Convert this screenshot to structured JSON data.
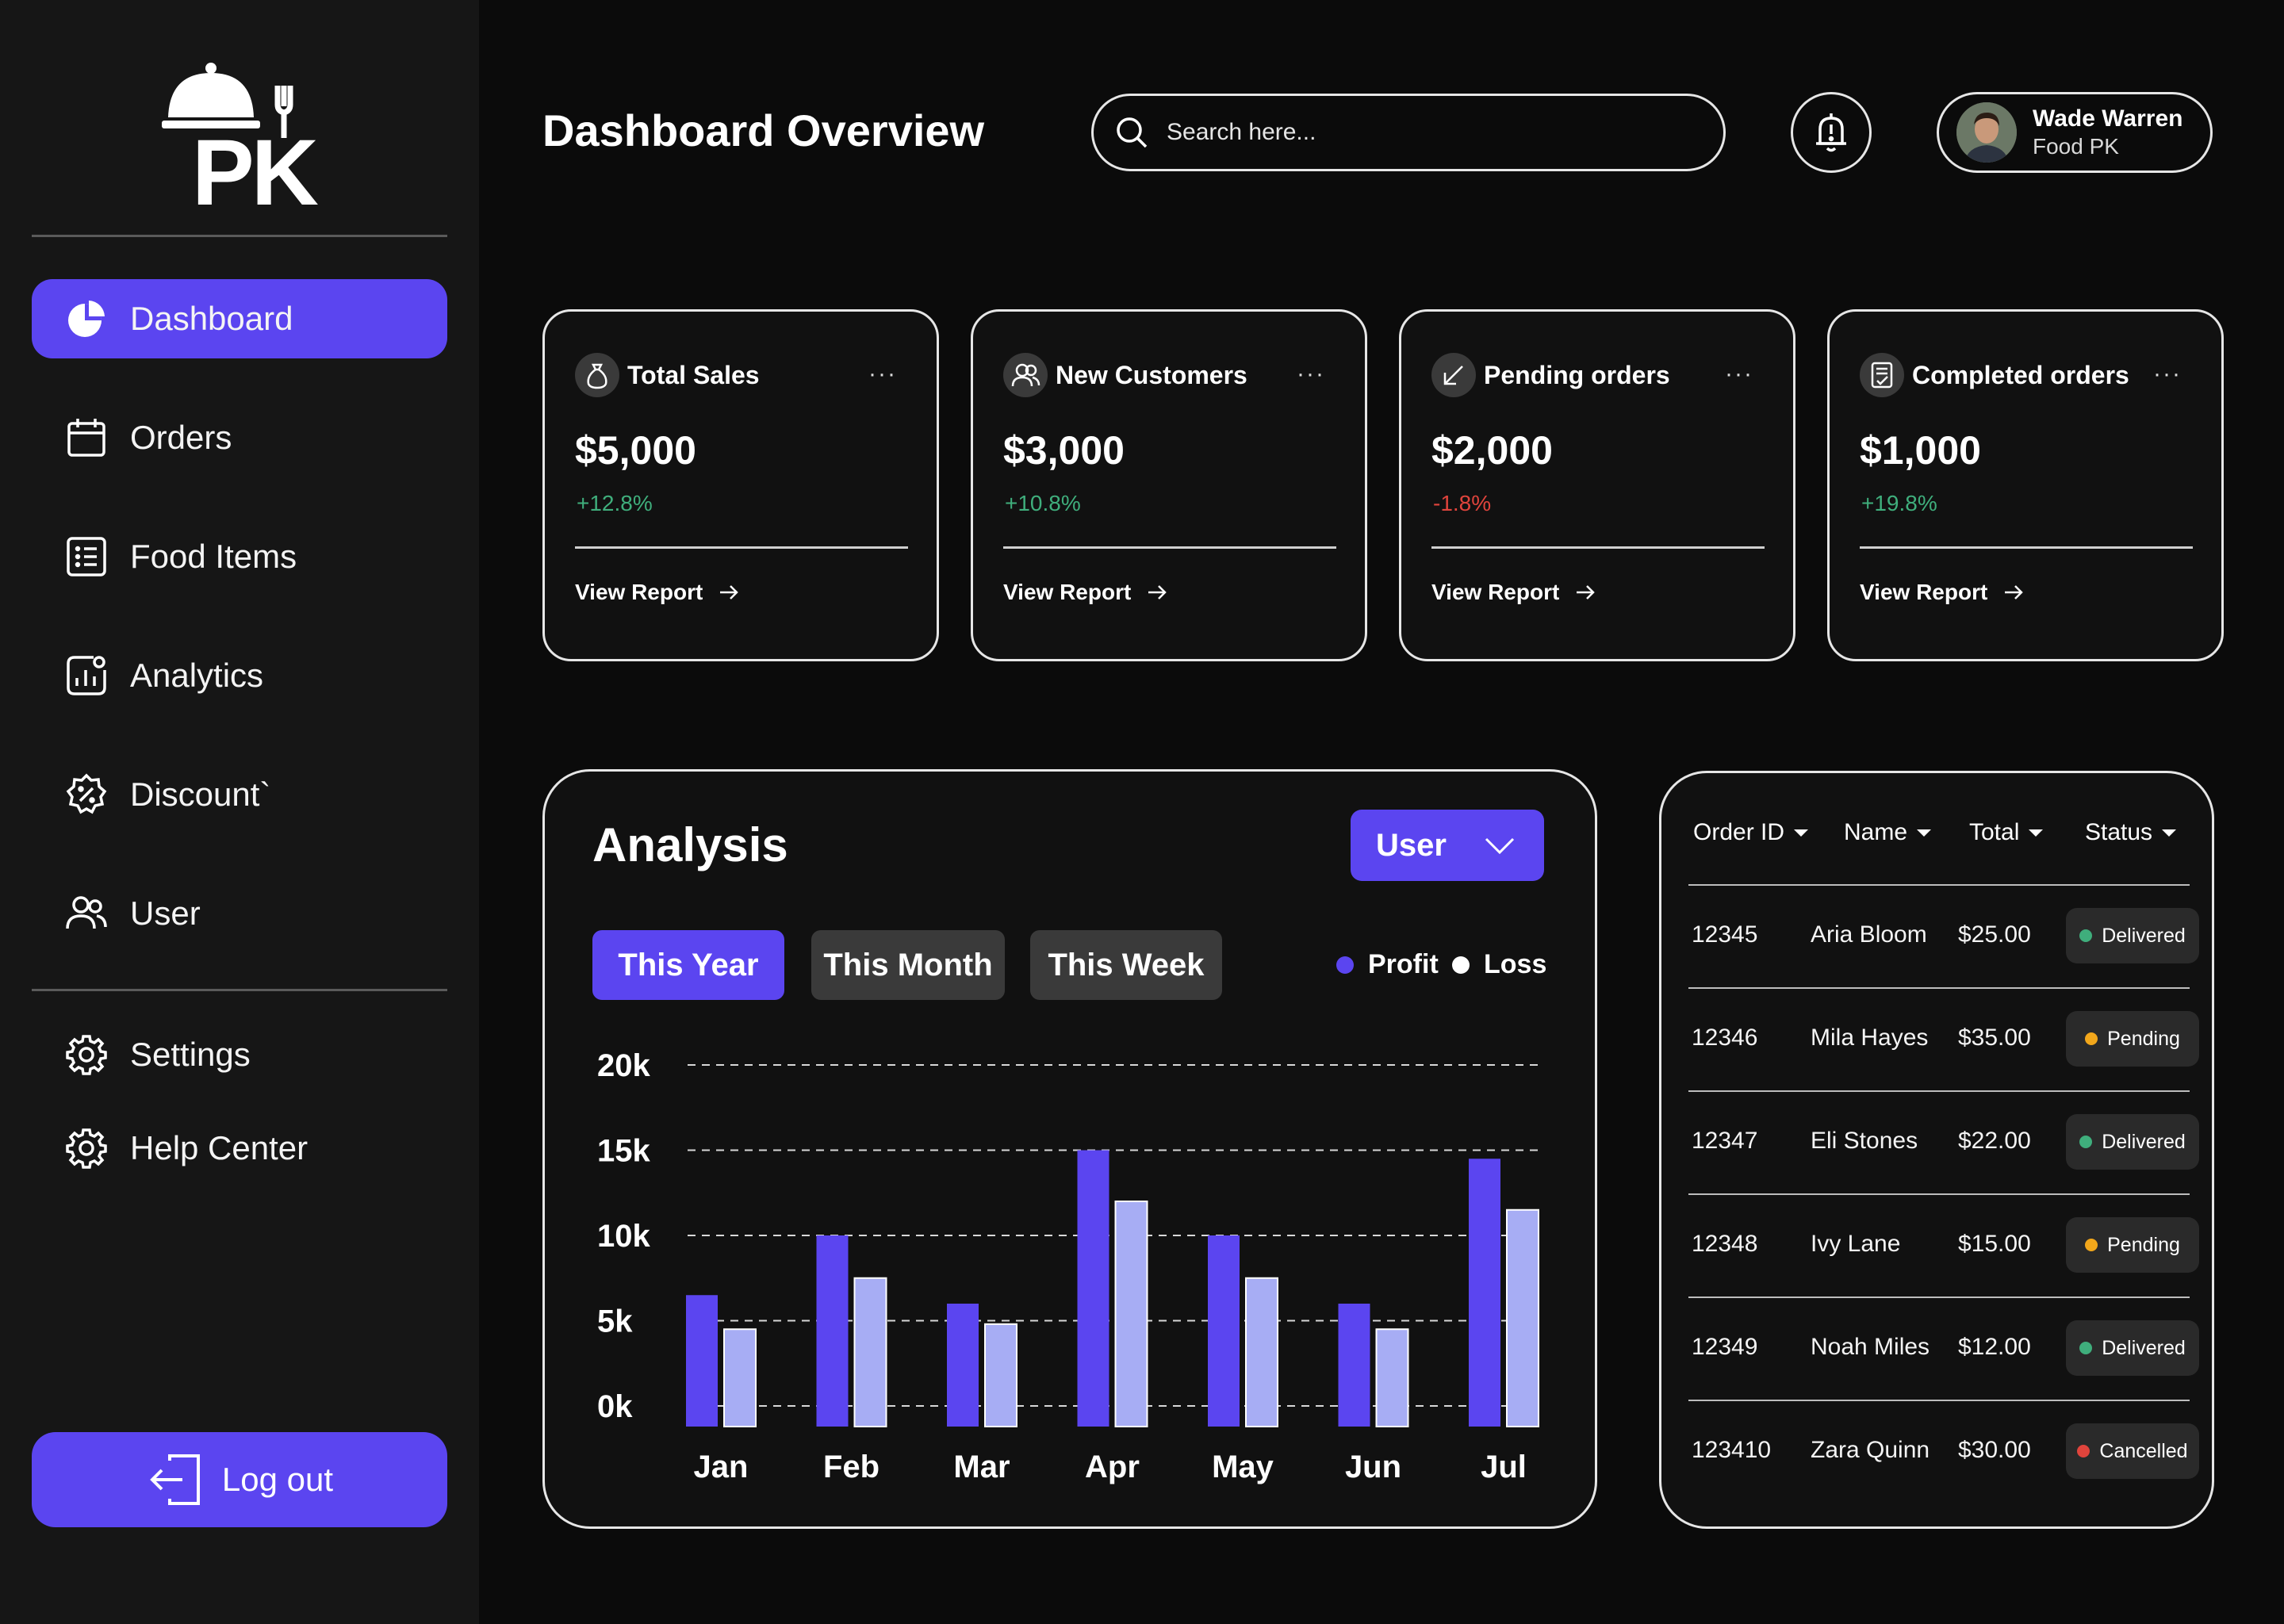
{
  "brand": {
    "logo_text": "PK"
  },
  "sidebar": {
    "items": [
      {
        "label": "Dashboard",
        "icon": "pie-chart-icon",
        "active": true
      },
      {
        "label": "Orders",
        "icon": "calendar-icon"
      },
      {
        "label": "Food Items",
        "icon": "list-icon"
      },
      {
        "label": "Analytics",
        "icon": "analytics-icon"
      },
      {
        "label": "Discount`",
        "icon": "discount-badge-icon"
      },
      {
        "label": "User",
        "icon": "users-icon"
      }
    ],
    "secondary": [
      {
        "label": "Settings",
        "icon": "gear-icon"
      },
      {
        "label": "Help Center",
        "icon": "gear-icon"
      }
    ],
    "logout_label": "Log out"
  },
  "header": {
    "title": "Dashboard Overview",
    "search_placeholder": "Search here...",
    "user_name": "Wade Warren",
    "user_sub": "Food PK"
  },
  "cards": [
    {
      "title": "Total Sales",
      "value": "$5,000",
      "change": "+12.8%",
      "trend": "up",
      "link": "View Report",
      "icon": "money-bag-icon"
    },
    {
      "title": "New Customers",
      "value": "$3,000",
      "change": "+10.8%",
      "trend": "up",
      "link": "View Report",
      "icon": "users-icon"
    },
    {
      "title": "Pending orders",
      "value": "$2,000",
      "change": "-1.8%",
      "trend": "down",
      "link": "View Report",
      "icon": "arrow-down-left-icon"
    },
    {
      "title": "Completed orders",
      "value": "$1,000",
      "change": "+19.8%",
      "trend": "up",
      "link": "View Report",
      "icon": "receipt-icon"
    }
  ],
  "colors": {
    "accent": "#5b45f0",
    "profit": "#5b45f0",
    "loss": "#a7adf4",
    "up": "#3fae7c",
    "down": "#e0443c"
  },
  "analysis": {
    "title": "Analysis",
    "select_value": "User",
    "tabs": [
      "This Year",
      "This Month",
      "This Week"
    ],
    "legend": [
      "Profit",
      "Loss"
    ]
  },
  "chart_data": {
    "type": "bar",
    "categories": [
      "Jan",
      "Feb",
      "Mar",
      "Apr",
      "May",
      "Jun",
      "Jul"
    ],
    "series": [
      {
        "name": "Profit",
        "values": [
          6500,
          10000,
          6000,
          15000,
          10000,
          6000,
          14500
        ]
      },
      {
        "name": "Loss",
        "values": [
          4500,
          7500,
          4800,
          12000,
          7500,
          4500,
          11500
        ]
      }
    ],
    "yticks": [
      "20k",
      "15k",
      "10k",
      "5k",
      "0k"
    ],
    "ylim": [
      0,
      20000
    ],
    "grid": "dashed",
    "legend_position": "top-right"
  },
  "orders": {
    "headers": [
      "Order ID",
      "Name",
      "Total",
      "Status"
    ],
    "rows": [
      {
        "id": "12345",
        "name": "Aria Bloom",
        "total": "$25.00",
        "status": "Delivered"
      },
      {
        "id": "12346",
        "name": "Mila Hayes",
        "total": "$35.00",
        "status": "Pending"
      },
      {
        "id": "12347",
        "name": "Eli Stones",
        "total": "$22.00",
        "status": "Delivered"
      },
      {
        "id": "12348",
        "name": "Ivy Lane",
        "total": "$15.00",
        "status": "Pending"
      },
      {
        "id": "12349",
        "name": "Noah Miles",
        "total": "$12.00",
        "status": "Delivered"
      },
      {
        "id": "123410",
        "name": "Zara Quinn",
        "total": "$30.00",
        "status": "Cancelled"
      }
    ],
    "status_colors": {
      "Delivered": "#3fae7c",
      "Pending": "#f2a71b",
      "Cancelled": "#e0443c"
    }
  }
}
